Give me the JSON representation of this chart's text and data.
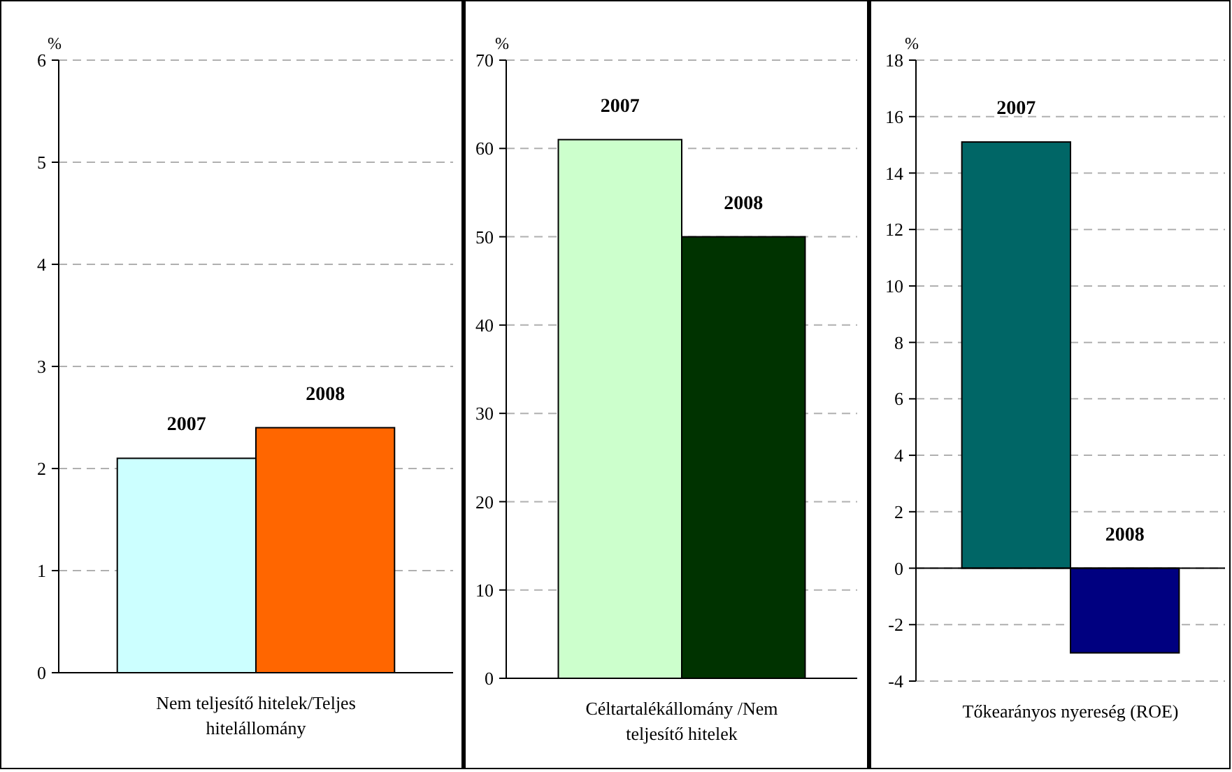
{
  "chart_data": [
    {
      "type": "bar",
      "xlabel": "Nem teljesítő hitelek/Teljes hitelállomány",
      "ylabel": "%",
      "categories": [
        null
      ],
      "series": [
        {
          "name": "2007",
          "color": "#ccffff",
          "values": [
            2.1
          ]
        },
        {
          "name": "2008",
          "color": "#ff6600",
          "values": [
            2.4
          ]
        }
      ],
      "ylim": [
        0,
        6
      ],
      "yticks": [
        0,
        1,
        2,
        3,
        4,
        5,
        6
      ],
      "grid": "y"
    },
    {
      "type": "bar",
      "xlabel": "Céltartalékállomány /Nem teljesítő hitelek",
      "ylabel": "%",
      "categories": [
        null
      ],
      "series": [
        {
          "name": "2007",
          "color": "#ccffcc",
          "values": [
            61
          ]
        },
        {
          "name": "2008",
          "color": "#003300",
          "values": [
            50
          ]
        }
      ],
      "ylim": [
        0,
        70
      ],
      "yticks": [
        0,
        10,
        20,
        30,
        40,
        50,
        60,
        70
      ],
      "grid": "y"
    },
    {
      "type": "bar",
      "xlabel": "Tőkearányos nyereség (ROE)",
      "ylabel": "%",
      "categories": [
        null
      ],
      "series": [
        {
          "name": "2007",
          "color": "#006666",
          "values": [
            15.1
          ]
        },
        {
          "name": "2008",
          "color": "#000080",
          "values": [
            -3
          ]
        }
      ],
      "ylim": [
        -4,
        18
      ],
      "yticks": [
        -4,
        -2,
        0,
        2,
        4,
        6,
        8,
        10,
        12,
        14,
        16,
        18
      ],
      "grid": "y"
    }
  ]
}
